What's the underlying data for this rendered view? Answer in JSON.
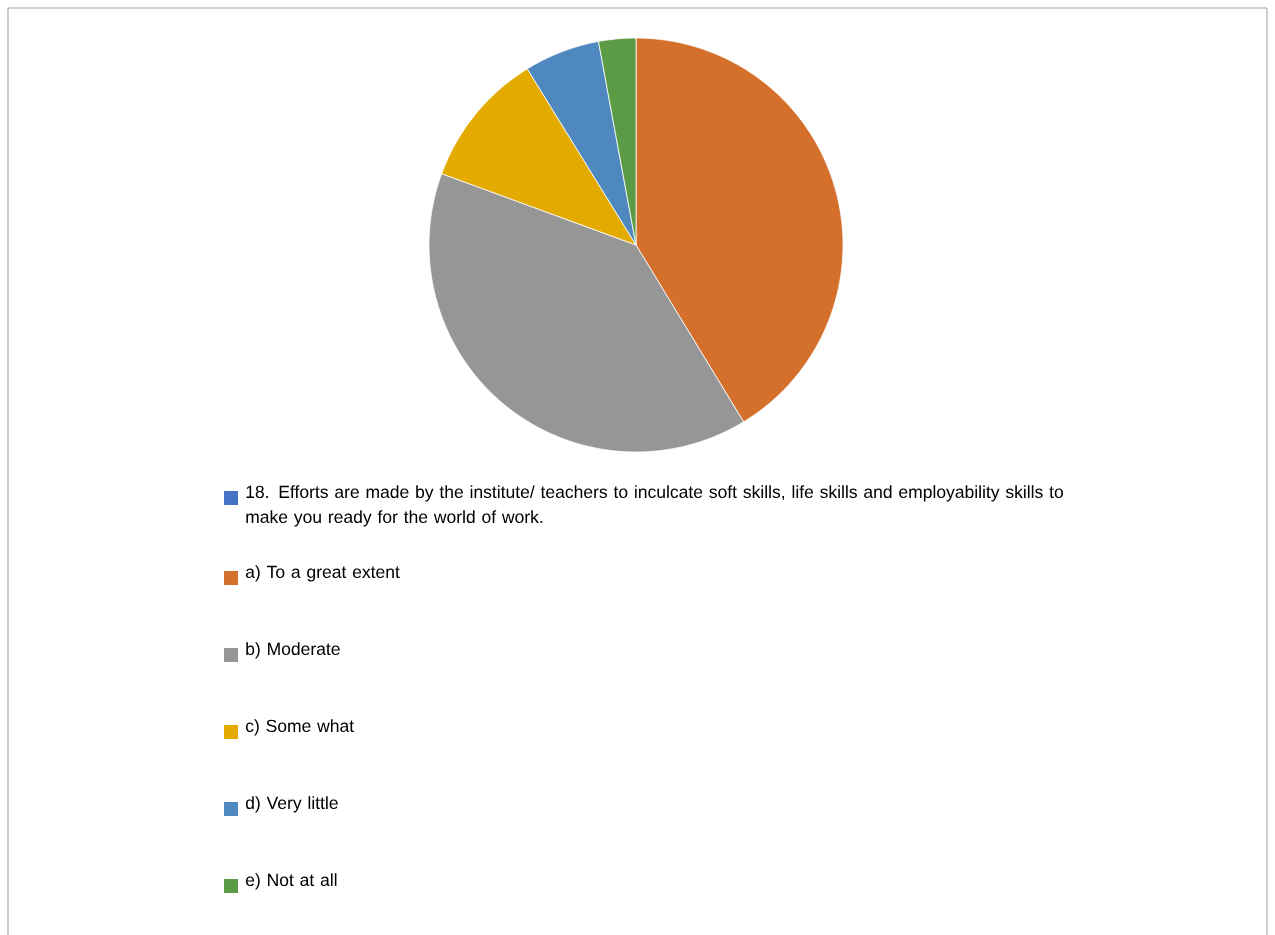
{
  "chart_data": {
    "type": "pie",
    "categories": [
      "18. Efforts are made by the institute/ teachers to inculcate soft skills, life skills and employability skills to make you ready for the world of work.",
      "a) To a great extent",
      "b) Moderate",
      "c) Some what",
      "d) Very little",
      "e) Not at all"
    ],
    "values": [
      0,
      41.3,
      39.3,
      10.6,
      5.9,
      2.9
    ],
    "colors": [
      "#4472c4",
      "#d46f2c",
      "#969696",
      "#e3ab00",
      "#4f88be",
      "#5c9b45"
    ],
    "legend": "bottom"
  }
}
